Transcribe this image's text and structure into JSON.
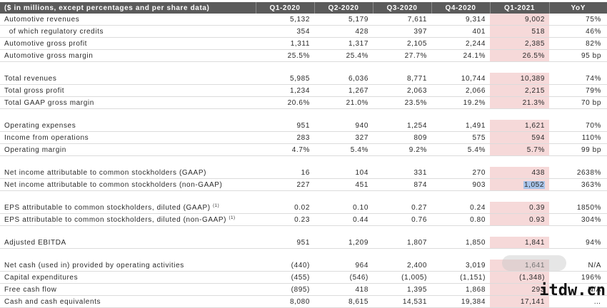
{
  "header": {
    "label": "($ in millions, except percentages and per share data)",
    "columns": [
      "Q1-2020",
      "Q2-2020",
      "Q3-2020",
      "Q4-2020",
      "Q1-2021",
      "YoY"
    ]
  },
  "sections": [
    {
      "rows": [
        {
          "label": "Automotive revenues",
          "values": [
            "5,132",
            "5,179",
            "7,611",
            "9,314",
            "9,002",
            "75%"
          ]
        },
        {
          "label": "  of which regulatory credits",
          "values": [
            "354",
            "428",
            "397",
            "401",
            "518",
            "46%"
          ]
        },
        {
          "label": "Automotive gross profit",
          "values": [
            "1,311",
            "1,317",
            "2,105",
            "2,244",
            "2,385",
            "82%"
          ]
        },
        {
          "label": "Automotive gross margin",
          "values": [
            "25.5%",
            "25.4%",
            "27.7%",
            "24.1%",
            "26.5%",
            "95 bp"
          ]
        }
      ]
    },
    {
      "rows": [
        {
          "label": "Total revenues",
          "values": [
            "5,985",
            "6,036",
            "8,771",
            "10,744",
            "10,389",
            "74%"
          ]
        },
        {
          "label": "Total gross profit",
          "values": [
            "1,234",
            "1,267",
            "2,063",
            "2,066",
            "2,215",
            "79%"
          ]
        },
        {
          "label": "Total GAAP gross margin",
          "values": [
            "20.6%",
            "21.0%",
            "23.5%",
            "19.2%",
            "21.3%",
            "70 bp"
          ]
        }
      ]
    },
    {
      "rows": [
        {
          "label": "Operating expenses",
          "values": [
            "951",
            "940",
            "1,254",
            "1,491",
            "1,621",
            "70%"
          ]
        },
        {
          "label": "Income from operations",
          "values": [
            "283",
            "327",
            "809",
            "575",
            "594",
            "110%"
          ]
        },
        {
          "label": "Operating margin",
          "values": [
            "4.7%",
            "5.4%",
            "9.2%",
            "5.4%",
            "5.7%",
            "99 bp"
          ]
        }
      ]
    },
    {
      "rows": [
        {
          "label": "Net income attributable to common stockholders (GAAP)",
          "values": [
            "16",
            "104",
            "331",
            "270",
            "438",
            "2638%"
          ]
        },
        {
          "label": "Net income attributable to common stockholders (non-GAAP)",
          "values": [
            "227",
            "451",
            "874",
            "903",
            "1,052",
            "363%"
          ],
          "selected": true
        }
      ]
    },
    {
      "rows": [
        {
          "label": "EPS attributable to common stockholders, diluted (GAAP)",
          "sup": "(1)",
          "values": [
            "0.02",
            "0.10",
            "0.27",
            "0.24",
            "0.39",
            "1850%"
          ]
        },
        {
          "label": "EPS attributable to common stockholders, diluted (non-GAAP)",
          "sup": "(1)",
          "values": [
            "0.23",
            "0.44",
            "0.76",
            "0.80",
            "0.93",
            "304%"
          ]
        }
      ]
    },
    {
      "rows": [
        {
          "label": "Adjusted EBITDA",
          "values": [
            "951",
            "1,209",
            "1,807",
            "1,850",
            "1,841",
            "94%"
          ]
        }
      ]
    },
    {
      "rows": [
        {
          "label": "Net cash (used in) provided by operating activities",
          "values": [
            "(440)",
            "964",
            "2,400",
            "3,019",
            "1,641",
            "N/A"
          ]
        },
        {
          "label": "Capital expenditures",
          "values": [
            "(455)",
            "(546)",
            "(1,005)",
            "(1,151)",
            "(1,348)",
            "196%"
          ]
        },
        {
          "label": "Free cash flow",
          "values": [
            "(895)",
            "418",
            "1,395",
            "1,868",
            "293",
            "N/A"
          ]
        },
        {
          "label": "Cash and cash equivalents",
          "values": [
            "8,080",
            "8,615",
            "14,531",
            "19,384",
            "17,141",
            "…"
          ]
        }
      ]
    }
  ],
  "watermark": {
    "text": "itdw.cn"
  },
  "colors": {
    "header_bg": "#5b5b5b",
    "highlight": "#f6d9d9",
    "selection": "#a9c4ea"
  }
}
